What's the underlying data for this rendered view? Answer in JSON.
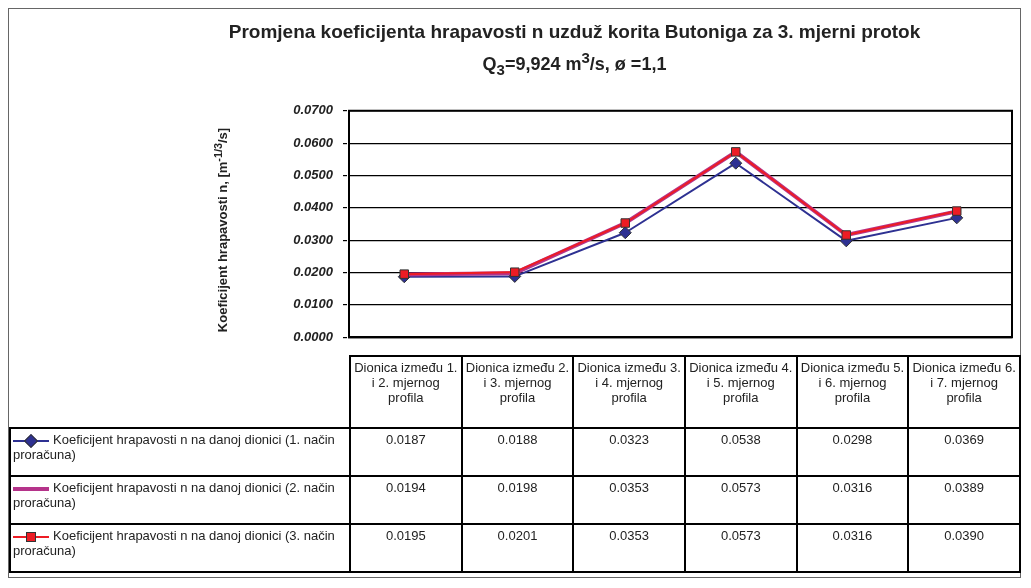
{
  "chart_data": {
    "type": "line",
    "title": "Promjena koeficijenta hrapavosti n uzduž korita Butoniga za 3. mjerni protok",
    "subtitle": "Q$_{3}$=9,924 m$^{3}$/s, ø =1,1",
    "ylabel": "Koeficijent hrapavosti n, [m$^{-1/3}$/s]",
    "categories": [
      "Dionica između 1. i 2. mjernog profila",
      "Dionica između 2. i 3. mjernog profila",
      "Dionica između 3. i 4. mjernog profila",
      "Dionica između 4. i 5. mjernog profila",
      "Dionica između 5. i 6. mjernog profila",
      "Dionica između 6. i 7. mjernog profila"
    ],
    "series": [
      {
        "name": "Koeficijent hrapavosti n na danoj dionici (1. način proračuna)",
        "color": "#2e3192",
        "marker": "diamond",
        "values": [
          0.0187,
          0.0188,
          0.0323,
          0.0538,
          0.0298,
          0.0369
        ],
        "value_labels": [
          "0.0187",
          "0.0188",
          "0.0323",
          "0.0538",
          "0.0298",
          "0.0369"
        ]
      },
      {
        "name": "Koeficijent hrapavosti n na danoj dionici (2. način proračuna)",
        "color": "#b5338a",
        "marker": "none",
        "values": [
          0.0194,
          0.0198,
          0.0353,
          0.0573,
          0.0316,
          0.0389
        ],
        "value_labels": [
          "0.0194",
          "0.0198",
          "0.0353",
          "0.0573",
          "0.0316",
          "0.0389"
        ]
      },
      {
        "name": "Koeficijent hrapavosti n na danoj dionici (3. način proračuna)",
        "color": "#ed1c24",
        "marker": "square",
        "values": [
          0.0195,
          0.0201,
          0.0353,
          0.0573,
          0.0316,
          0.039
        ],
        "value_labels": [
          "0.0195",
          "0.0201",
          "0.0353",
          "0.0573",
          "0.0316",
          "0.0390"
        ]
      }
    ],
    "ylim": [
      0,
      0.07
    ],
    "yticks": [
      {
        "value": 0,
        "label": "0.0000"
      },
      {
        "value": 0.01,
        "label": "0.0100"
      },
      {
        "value": 0.02,
        "label": "0.0200"
      },
      {
        "value": 0.03,
        "label": "0.0300"
      },
      {
        "value": 0.04,
        "label": "0.0400"
      },
      {
        "value": 0.05,
        "label": "0.0500"
      },
      {
        "value": 0.06,
        "label": "0.0600"
      },
      {
        "value": 0.07,
        "label": "0.0700"
      }
    ],
    "grid": "y",
    "legend": "bottom",
    "line_style": "solid"
  }
}
